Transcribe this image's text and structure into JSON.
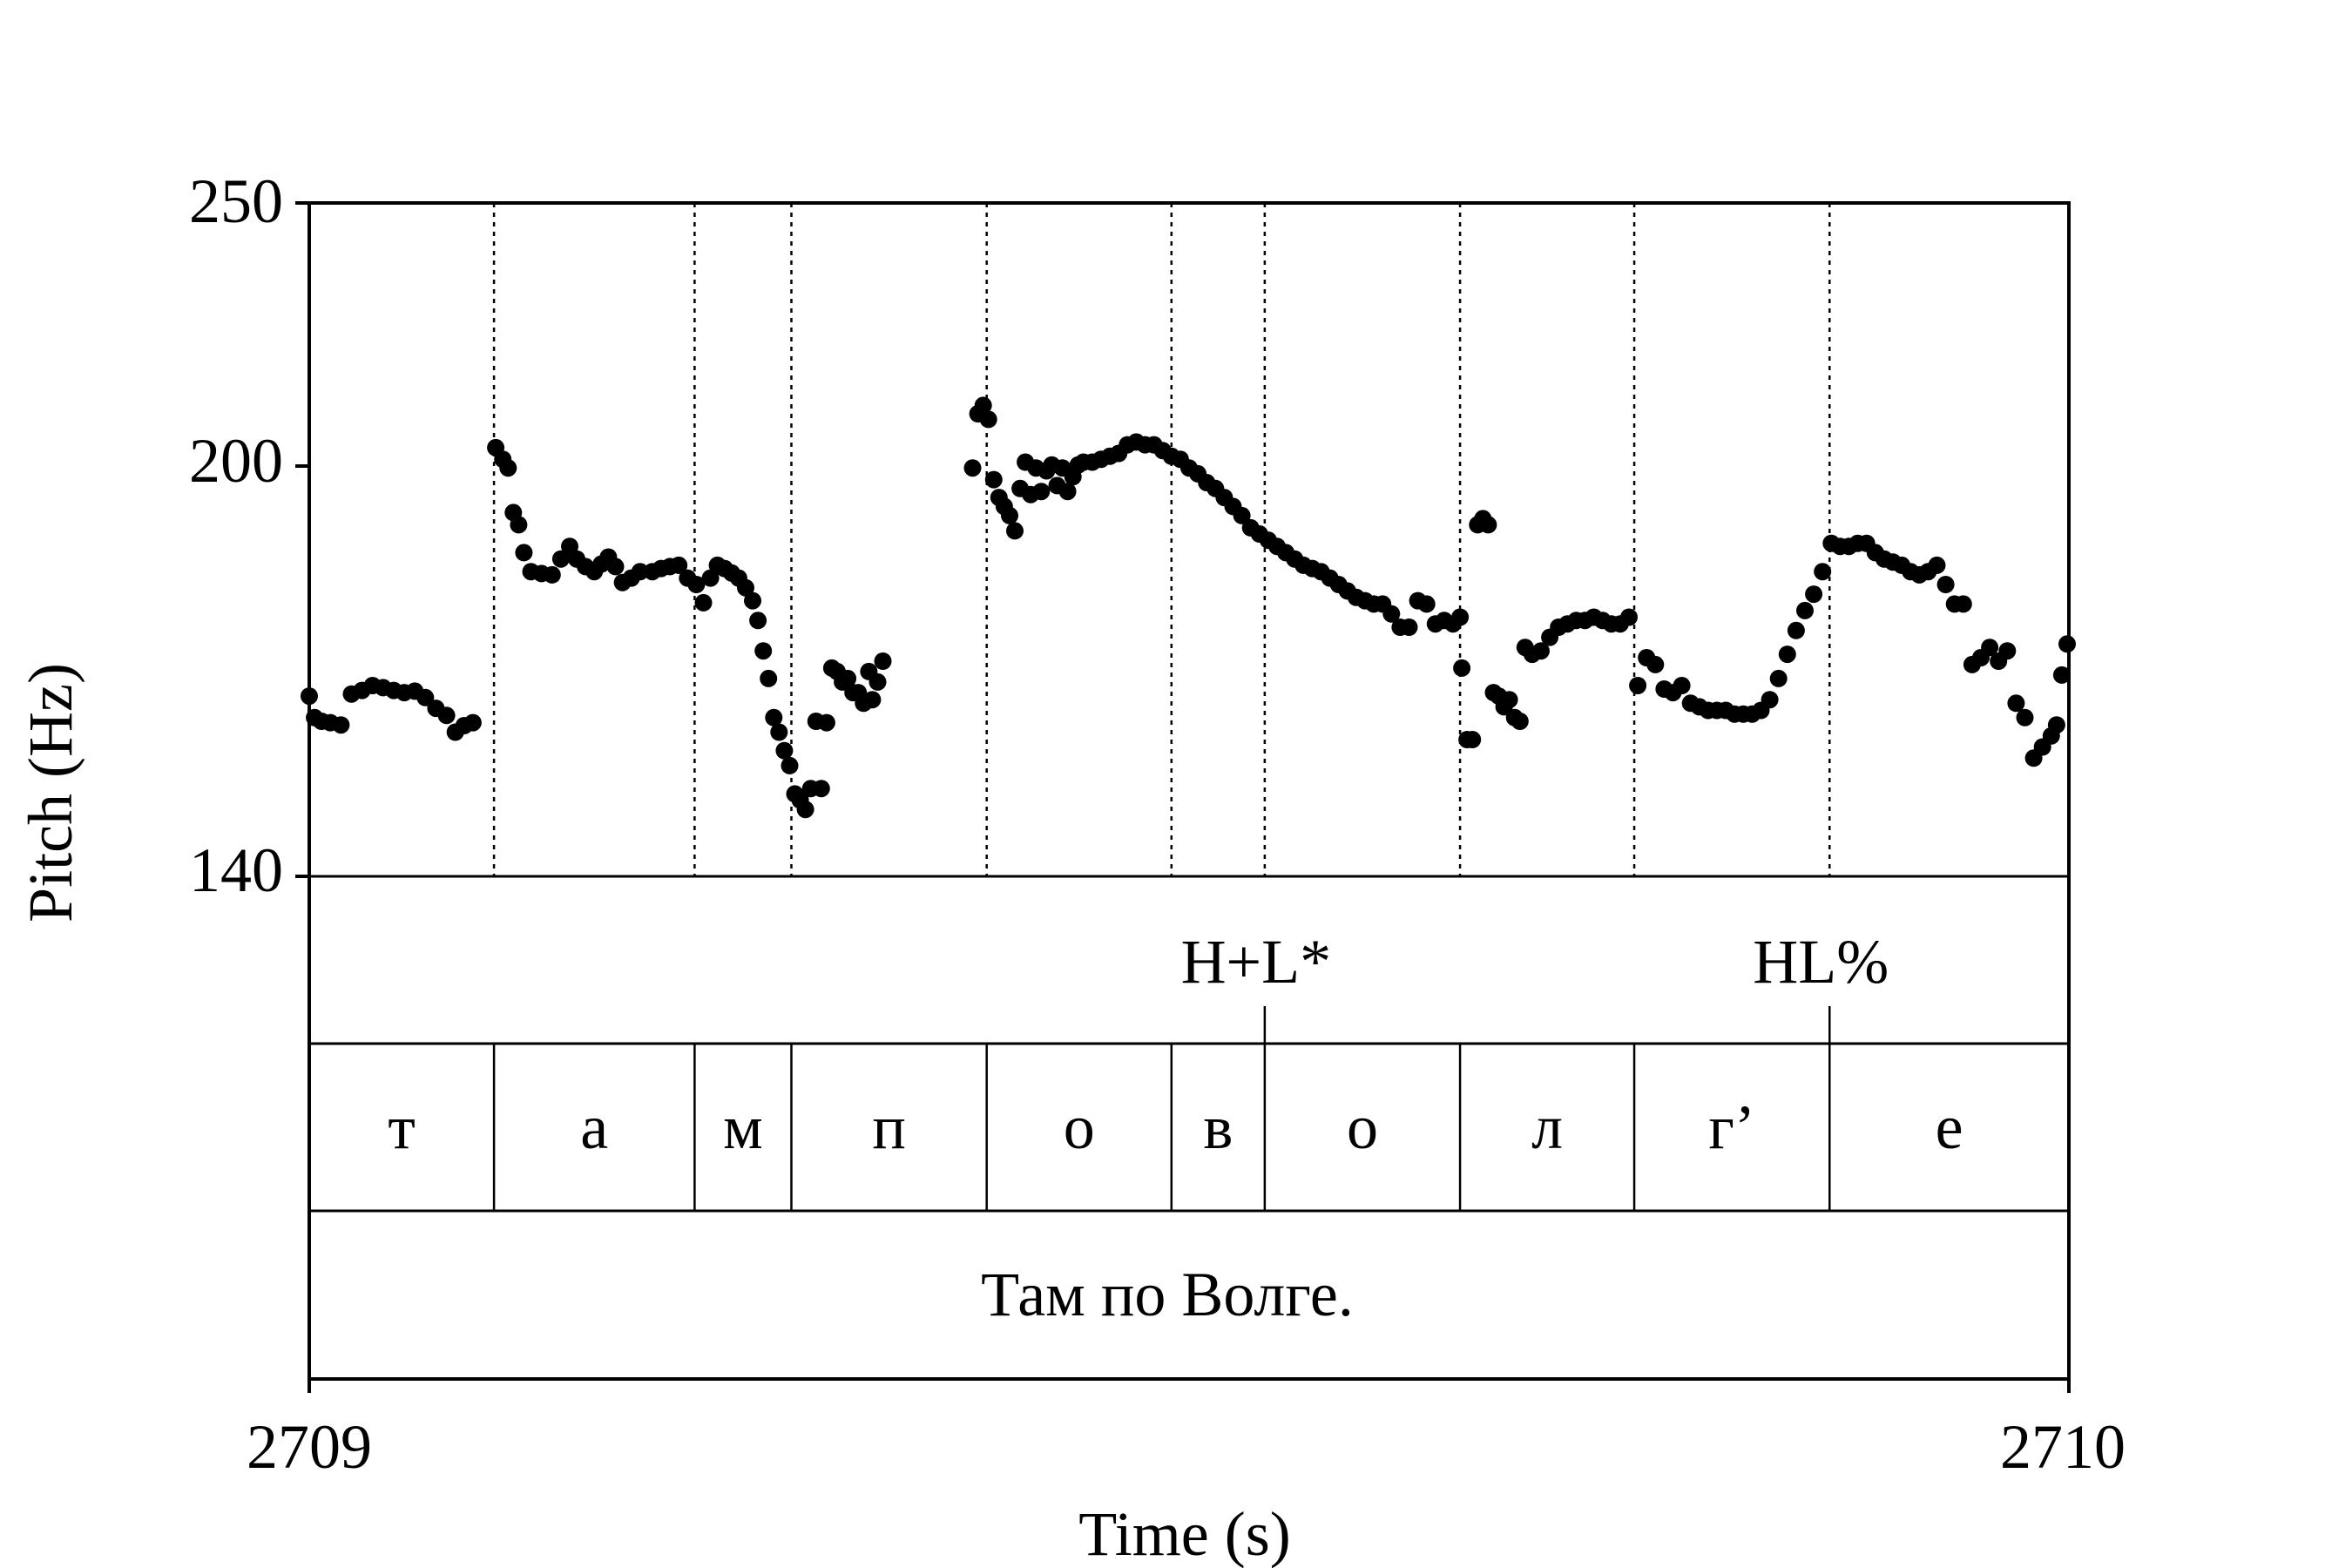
{
  "chart_data": {
    "type": "scatter",
    "title": "",
    "xlabel": "Time (s)",
    "ylabel": "Pitch (Hz)",
    "xlim": [
      2709,
      2710
    ],
    "ylim": [
      140,
      250
    ],
    "x_tick_labels": [
      "2709",
      "2710"
    ],
    "y_tick_labels": [
      "140",
      "200",
      "250"
    ],
    "y_scale": "log",
    "grid": false,
    "legend": "none",
    "point_color": "#000000",
    "segment_boundaries": [
      2709.105,
      2709.219,
      2709.274,
      2709.385,
      2709.49,
      2709.543,
      2709.654,
      2709.753,
      2709.864
    ],
    "tiers": [
      {
        "name": "tones",
        "labels": [
          {
            "text": "H+L*",
            "time": 2709.543
          },
          {
            "text": "HL%",
            "time": 2709.864
          }
        ]
      },
      {
        "name": "segments",
        "labels": [
          {
            "text": "т",
            "start": 2709.0,
            "end": 2709.105
          },
          {
            "text": "а",
            "start": 2709.105,
            "end": 2709.219
          },
          {
            "text": "м",
            "start": 2709.219,
            "end": 2709.274
          },
          {
            "text": "п",
            "start": 2709.274,
            "end": 2709.385
          },
          {
            "text": "о",
            "start": 2709.385,
            "end": 2709.49
          },
          {
            "text": "в",
            "start": 2709.49,
            "end": 2709.543
          },
          {
            "text": "о",
            "start": 2709.543,
            "end": 2709.654
          },
          {
            "text": "л",
            "start": 2709.654,
            "end": 2709.753
          },
          {
            "text": "г’",
            "start": 2709.753,
            "end": 2709.864
          },
          {
            "text": "е",
            "start": 2709.864,
            "end": 2710.0
          }
        ]
      },
      {
        "name": "sentence",
        "labels": [
          {
            "text": "Там по Волге.",
            "start": 2709.0,
            "end": 2710.0
          }
        ]
      }
    ],
    "series": [
      {
        "points": [
          [
            2709.0,
            163.5
          ],
          [
            2709.003,
            160.5
          ],
          [
            2709.007,
            160.0
          ],
          [
            2709.012,
            159.8
          ],
          [
            2709.018,
            159.5
          ],
          [
            2709.024,
            163.8
          ],
          [
            2709.03,
            164.3
          ],
          [
            2709.036,
            165.0
          ],
          [
            2709.042,
            164.7
          ],
          [
            2709.048,
            164.3
          ],
          [
            2709.054,
            164.0
          ],
          [
            2709.06,
            164.2
          ],
          [
            2709.066,
            163.3
          ],
          [
            2709.072,
            161.8
          ],
          [
            2709.078,
            160.8
          ],
          [
            2709.083,
            158.5
          ],
          [
            2709.088,
            159.4
          ],
          [
            2709.093,
            159.8
          ],
          [
            2709.106,
            202.5
          ],
          [
            2709.11,
            200.5
          ],
          [
            2709.113,
            199.0
          ],
          [
            2709.116,
            191.5
          ],
          [
            2709.119,
            189.5
          ],
          [
            2709.122,
            185.0
          ],
          [
            2709.126,
            182.0
          ],
          [
            2709.132,
            181.7
          ],
          [
            2709.138,
            181.5
          ],
          [
            2709.143,
            184.0
          ],
          [
            2709.148,
            186.0
          ],
          [
            2709.152,
            184.0
          ],
          [
            2709.157,
            182.8
          ],
          [
            2709.162,
            182.0
          ],
          [
            2709.166,
            183.2
          ],
          [
            2709.17,
            184.3
          ],
          [
            2709.174,
            182.8
          ],
          [
            2709.178,
            180.3
          ],
          [
            2709.183,
            181.0
          ],
          [
            2709.188,
            182.0
          ],
          [
            2709.195,
            182.0
          ],
          [
            2709.2,
            182.5
          ],
          [
            2709.205,
            182.8
          ],
          [
            2709.21,
            183.0
          ],
          [
            2709.215,
            181.0
          ],
          [
            2709.22,
            180.0
          ],
          [
            2709.224,
            177.2
          ],
          [
            2709.228,
            181.0
          ],
          [
            2709.232,
            183.0
          ],
          [
            2709.236,
            182.5
          ],
          [
            2709.24,
            181.8
          ],
          [
            2709.244,
            181.0
          ],
          [
            2709.248,
            179.5
          ],
          [
            2709.252,
            177.5
          ],
          [
            2709.255,
            174.5
          ],
          [
            2709.258,
            170.0
          ],
          [
            2709.261,
            166.0
          ],
          [
            2709.264,
            160.5
          ],
          [
            2709.267,
            158.5
          ],
          [
            2709.27,
            156.0
          ],
          [
            2709.273,
            154.0
          ],
          [
            2709.276,
            150.3
          ],
          [
            2709.279,
            149.5
          ],
          [
            2709.282,
            148.3
          ],
          [
            2709.285,
            151.0
          ],
          [
            2709.288,
            160.0
          ],
          [
            2709.291,
            151.0
          ],
          [
            2709.294,
            159.8
          ],
          [
            2709.297,
            167.5
          ],
          [
            2709.3,
            167.0
          ],
          [
            2709.303,
            165.5
          ],
          [
            2709.306,
            166.0
          ],
          [
            2709.309,
            164.0
          ],
          [
            2709.312,
            164.0
          ],
          [
            2709.315,
            162.5
          ],
          [
            2709.318,
            167.0
          ],
          [
            2709.32,
            163.0
          ],
          [
            2709.323,
            165.5
          ],
          [
            2709.326,
            168.5
          ],
          [
            2709.377,
            199.0
          ],
          [
            2709.38,
            208.5
          ],
          [
            2709.383,
            210.0
          ],
          [
            2709.386,
            207.5
          ],
          [
            2709.389,
            197.0
          ],
          [
            2709.392,
            194.0
          ],
          [
            2709.395,
            192.5
          ],
          [
            2709.398,
            191.0
          ],
          [
            2709.401,
            188.5
          ],
          [
            2709.404,
            195.5
          ],
          [
            2709.407,
            200.0
          ],
          [
            2709.41,
            194.5
          ],
          [
            2709.413,
            199.0
          ],
          [
            2709.416,
            195.0
          ],
          [
            2709.419,
            198.5
          ],
          [
            2709.422,
            199.5
          ],
          [
            2709.425,
            196.0
          ],
          [
            2709.428,
            199.0
          ],
          [
            2709.431,
            195.0
          ],
          [
            2709.434,
            197.5
          ],
          [
            2709.437,
            199.5
          ],
          [
            2709.44,
            200.0
          ],
          [
            2709.445,
            200.0
          ],
          [
            2709.45,
            200.5
          ],
          [
            2709.455,
            201.0
          ],
          [
            2709.46,
            201.5
          ],
          [
            2709.465,
            203.0
          ],
          [
            2709.47,
            203.5
          ],
          [
            2709.475,
            203.0
          ],
          [
            2709.48,
            203.0
          ],
          [
            2709.485,
            202.0
          ],
          [
            2709.49,
            201.0
          ],
          [
            2709.495,
            200.5
          ],
          [
            2709.5,
            199.0
          ],
          [
            2709.505,
            198.0
          ],
          [
            2709.51,
            196.5
          ],
          [
            2709.515,
            195.5
          ],
          [
            2709.52,
            194.0
          ],
          [
            2709.525,
            192.5
          ],
          [
            2709.53,
            191.0
          ],
          [
            2709.535,
            189.0
          ],
          [
            2709.54,
            188.0
          ],
          [
            2709.545,
            187.0
          ],
          [
            2709.55,
            186.0
          ],
          [
            2709.555,
            185.0
          ],
          [
            2709.56,
            184.0
          ],
          [
            2709.565,
            183.0
          ],
          [
            2709.57,
            182.5
          ],
          [
            2709.575,
            182.0
          ],
          [
            2709.58,
            181.0
          ],
          [
            2709.585,
            180.0
          ],
          [
            2709.59,
            179.0
          ],
          [
            2709.595,
            178.0
          ],
          [
            2709.6,
            177.5
          ],
          [
            2709.605,
            177.0
          ],
          [
            2709.61,
            177.0
          ],
          [
            2709.615,
            175.5
          ],
          [
            2709.62,
            173.5
          ],
          [
            2709.625,
            173.5
          ],
          [
            2709.63,
            177.5
          ],
          [
            2709.635,
            177.0
          ],
          [
            2709.64,
            174.0
          ],
          [
            2709.645,
            174.5
          ],
          [
            2709.65,
            174.0
          ],
          [
            2709.654,
            175.0
          ],
          [
            2709.655,
            167.5
          ],
          [
            2709.658,
            157.5
          ],
          [
            2709.661,
            157.5
          ],
          [
            2709.664,
            189.5
          ],
          [
            2709.667,
            190.5
          ],
          [
            2709.67,
            189.5
          ],
          [
            2709.673,
            164.0
          ],
          [
            2709.676,
            163.5
          ],
          [
            2709.679,
            162.0
          ],
          [
            2709.682,
            163.0
          ],
          [
            2709.685,
            160.5
          ],
          [
            2709.688,
            160.0
          ],
          [
            2709.691,
            170.5
          ],
          [
            2709.695,
            169.5
          ],
          [
            2709.7,
            170.0
          ],
          [
            2709.705,
            172.0
          ],
          [
            2709.71,
            173.5
          ],
          [
            2709.715,
            174.0
          ],
          [
            2709.72,
            174.5
          ],
          [
            2709.725,
            174.5
          ],
          [
            2709.73,
            175.0
          ],
          [
            2709.735,
            174.5
          ],
          [
            2709.74,
            174.0
          ],
          [
            2709.745,
            174.0
          ],
          [
            2709.75,
            175.0
          ],
          [
            2709.755,
            165.0
          ],
          [
            2709.76,
            169.0
          ],
          [
            2709.765,
            168.0
          ],
          [
            2709.77,
            164.5
          ],
          [
            2709.775,
            164.0
          ],
          [
            2709.78,
            165.0
          ],
          [
            2709.785,
            162.5
          ],
          [
            2709.79,
            162.0
          ],
          [
            2709.795,
            161.5
          ],
          [
            2709.8,
            161.5
          ],
          [
            2709.805,
            161.5
          ],
          [
            2709.81,
            161.0
          ],
          [
            2709.815,
            161.0
          ],
          [
            2709.82,
            161.0
          ],
          [
            2709.825,
            161.5
          ],
          [
            2709.83,
            163.0
          ],
          [
            2709.835,
            166.0
          ],
          [
            2709.84,
            169.5
          ],
          [
            2709.845,
            173.0
          ],
          [
            2709.85,
            176.0
          ],
          [
            2709.855,
            178.5
          ],
          [
            2709.86,
            182.0
          ],
          [
            2709.865,
            186.5
          ],
          [
            2709.87,
            186.0
          ],
          [
            2709.875,
            186.0
          ],
          [
            2709.88,
            186.5
          ],
          [
            2709.885,
            186.5
          ],
          [
            2709.89,
            185.0
          ],
          [
            2709.895,
            184.0
          ],
          [
            2709.9,
            183.5
          ],
          [
            2709.905,
            183.0
          ],
          [
            2709.91,
            182.0
          ],
          [
            2709.915,
            181.5
          ],
          [
            2709.92,
            182.0
          ],
          [
            2709.925,
            183.0
          ],
          [
            2709.93,
            180.0
          ],
          [
            2709.935,
            177.0
          ],
          [
            2709.94,
            177.0
          ],
          [
            2709.945,
            168.0
          ],
          [
            2709.95,
            169.0
          ],
          [
            2709.955,
            170.5
          ],
          [
            2709.96,
            168.5
          ],
          [
            2709.965,
            170.0
          ],
          [
            2709.97,
            162.5
          ],
          [
            2709.975,
            160.5
          ],
          [
            2709.98,
            155.0
          ],
          [
            2709.985,
            156.5
          ],
          [
            2709.99,
            158.0
          ],
          [
            2709.993,
            159.5
          ],
          [
            2709.996,
            166.5
          ],
          [
            2709.999,
            171.0
          ]
        ]
      }
    ]
  }
}
